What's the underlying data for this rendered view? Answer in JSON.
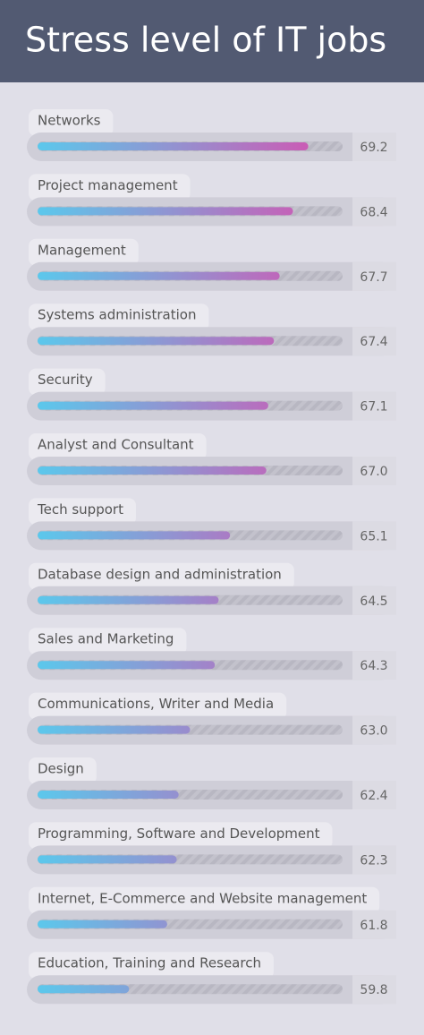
{
  "chart_data": {
    "type": "bar",
    "orientation": "horizontal",
    "title": "Stress level of IT jobs",
    "categories": [
      "Networks",
      "Project management",
      "Management",
      "Systems administration",
      "Security",
      "Analyst and Consultant",
      "Tech support",
      "Database design and administration",
      "Sales and Marketing",
      "Communications, Writer and Media",
      "Design",
      "Programming, Software and Development",
      "Internet, E-Commerce and Website management",
      "Education, Training and Research"
    ],
    "values": [
      69.2,
      68.4,
      67.7,
      67.4,
      67.1,
      67.0,
      65.1,
      64.5,
      64.3,
      63.0,
      62.4,
      62.3,
      61.8,
      59.8
    ],
    "value_labels": [
      "69.2",
      "68.4",
      "67.7",
      "67.4",
      "67.1",
      "67.0",
      "65.1",
      "64.5",
      "64.3",
      "63.0",
      "62.4",
      "62.3",
      "61.8",
      "59.8"
    ],
    "xlim": [
      55,
      71
    ],
    "colors": [
      "#5bc8ec",
      "#d84fae"
    ]
  }
}
